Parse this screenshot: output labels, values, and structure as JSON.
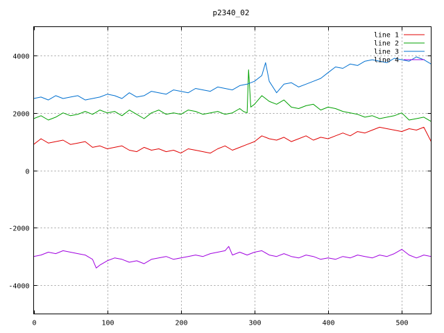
{
  "chart_data": {
    "type": "line",
    "title": "p2340_02",
    "xlabel": "",
    "ylabel": "",
    "xlim": [
      0,
      540
    ],
    "ylim": [
      -5000,
      5000
    ],
    "xticks": [
      0,
      100,
      200,
      300,
      400,
      500
    ],
    "yticks": [
      -4000,
      -2000,
      0,
      2000,
      4000
    ],
    "grid": true,
    "legend_position": "top-right",
    "series": [
      {
        "name": "line 1",
        "color": "#e00000",
        "x": [
          0,
          10,
          20,
          30,
          40,
          50,
          60,
          70,
          80,
          90,
          100,
          110,
          120,
          130,
          140,
          150,
          160,
          170,
          180,
          190,
          200,
          210,
          220,
          230,
          240,
          250,
          260,
          270,
          280,
          290,
          300,
          310,
          320,
          330,
          340,
          350,
          360,
          370,
          380,
          390,
          400,
          410,
          420,
          430,
          440,
          450,
          460,
          470,
          480,
          490,
          500,
          510,
          520,
          530,
          540
        ],
        "values": [
          900,
          1100,
          950,
          1000,
          1050,
          900,
          950,
          1000,
          800,
          850,
          750,
          800,
          850,
          700,
          650,
          800,
          700,
          750,
          650,
          700,
          600,
          750,
          700,
          650,
          600,
          750,
          850,
          700,
          800,
          900,
          1000,
          1200,
          1100,
          1050,
          1150,
          1000,
          1100,
          1200,
          1050,
          1150,
          1100,
          1200,
          1300,
          1200,
          1350,
          1300,
          1400,
          1500,
          1450,
          1400,
          1350,
          1450,
          1400,
          1500,
          1000
        ]
      },
      {
        "name": "line 2",
        "color": "#00a000",
        "x": [
          0,
          10,
          20,
          30,
          40,
          50,
          60,
          70,
          80,
          90,
          100,
          110,
          120,
          130,
          140,
          150,
          160,
          170,
          180,
          190,
          200,
          210,
          220,
          230,
          240,
          250,
          260,
          270,
          280,
          285,
          290,
          292,
          295,
          300,
          310,
          320,
          330,
          340,
          350,
          360,
          370,
          380,
          390,
          400,
          410,
          420,
          430,
          440,
          450,
          460,
          470,
          480,
          490,
          500,
          510,
          520,
          530,
          540
        ],
        "values": [
          1800,
          1900,
          1750,
          1850,
          2000,
          1900,
          1950,
          2050,
          1950,
          2100,
          2000,
          2050,
          1900,
          2100,
          1950,
          1800,
          2000,
          2100,
          1950,
          2000,
          1950,
          2100,
          2050,
          1950,
          2000,
          2050,
          1950,
          2000,
          2150,
          2050,
          2000,
          3500,
          2200,
          2300,
          2600,
          2400,
          2300,
          2450,
          2200,
          2150,
          2250,
          2300,
          2100,
          2200,
          2150,
          2050,
          2000,
          1950,
          1850,
          1900,
          1800,
          1850,
          1900,
          2000,
          1750,
          1800,
          1850,
          1700
        ]
      },
      {
        "name": "line 3",
        "color": "#0070d0",
        "x": [
          0,
          10,
          20,
          30,
          40,
          50,
          60,
          70,
          80,
          90,
          100,
          110,
          120,
          130,
          140,
          150,
          160,
          170,
          180,
          190,
          200,
          210,
          220,
          230,
          240,
          250,
          260,
          270,
          280,
          290,
          300,
          310,
          315,
          320,
          330,
          340,
          350,
          360,
          370,
          380,
          390,
          400,
          410,
          420,
          430,
          440,
          450,
          460,
          470,
          480,
          490,
          500,
          510,
          520,
          530,
          540
        ],
        "values": [
          2500,
          2550,
          2450,
          2600,
          2500,
          2550,
          2600,
          2450,
          2500,
          2550,
          2650,
          2600,
          2500,
          2700,
          2550,
          2600,
          2750,
          2700,
          2650,
          2800,
          2750,
          2700,
          2850,
          2800,
          2750,
          2900,
          2850,
          2800,
          2950,
          3000,
          3100,
          3300,
          3750,
          3100,
          2700,
          3000,
          3050,
          2900,
          3000,
          3100,
          3200,
          3400,
          3600,
          3550,
          3700,
          3650,
          3800,
          3850,
          3800,
          3750,
          3900,
          3850,
          3800,
          3950,
          3850,
          3700
        ]
      },
      {
        "name": "line 4",
        "color": "#a000e0",
        "x": [
          0,
          10,
          20,
          30,
          40,
          50,
          60,
          70,
          80,
          85,
          90,
          100,
          110,
          120,
          130,
          140,
          150,
          160,
          170,
          180,
          190,
          200,
          210,
          220,
          230,
          240,
          250,
          260,
          265,
          270,
          280,
          290,
          300,
          310,
          320,
          330,
          340,
          350,
          360,
          370,
          380,
          390,
          400,
          410,
          420,
          430,
          440,
          450,
          460,
          470,
          480,
          490,
          500,
          510,
          520,
          530,
          540
        ],
        "values": [
          -3000,
          -2950,
          -2850,
          -2900,
          -2800,
          -2850,
          -2900,
          -2950,
          -3100,
          -3400,
          -3300,
          -3150,
          -3050,
          -3100,
          -3200,
          -3150,
          -3250,
          -3100,
          -3050,
          -3000,
          -3100,
          -3050,
          -3000,
          -2950,
          -3000,
          -2900,
          -2850,
          -2800,
          -2650,
          -2950,
          -2850,
          -2950,
          -2850,
          -2800,
          -2950,
          -3000,
          -2900,
          -3000,
          -3050,
          -2950,
          -3000,
          -3100,
          -3050,
          -3100,
          -3000,
          -3050,
          -2950,
          -3000,
          -3050,
          -2950,
          -3000,
          -2900,
          -2750,
          -2950,
          -3050,
          -2950,
          -3000
        ]
      }
    ]
  }
}
